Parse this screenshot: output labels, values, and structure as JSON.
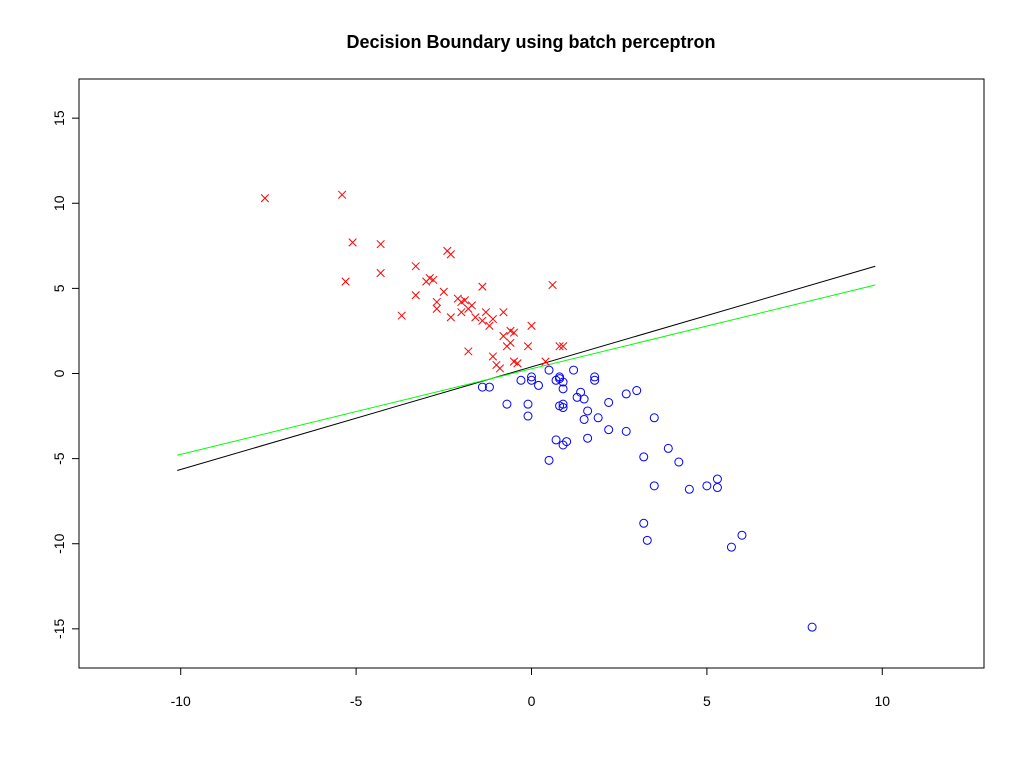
{
  "chart_data": {
    "type": "scatter",
    "title": "Decision Boundary using batch perceptron",
    "xlabel": "",
    "ylabel": "",
    "xlim": [
      -12.9,
      12.9
    ],
    "ylim": [
      -17.3,
      17.3
    ],
    "x_ticks": [
      -10,
      -5,
      0,
      5,
      10
    ],
    "x_tick_labels": [
      "-10",
      "-5",
      "0",
      "5",
      "10"
    ],
    "y_ticks": [
      -15,
      -10,
      -5,
      0,
      5,
      10,
      15
    ],
    "y_tick_labels": [
      "-15",
      "-10",
      "-5",
      "0",
      "5",
      "10",
      "15"
    ],
    "grid": false,
    "colors": {
      "class_x": "#ff0000",
      "class_o": "#0000ff",
      "line_black": "#000000",
      "line_green": "#00ff00"
    },
    "series": [
      {
        "marker": "x",
        "color": "#ff0000",
        "points": [
          [
            -7.6,
            10.3
          ],
          [
            -5.4,
            10.5
          ],
          [
            -5.1,
            7.7
          ],
          [
            -5.3,
            5.4
          ],
          [
            -4.3,
            7.6
          ],
          [
            -4.3,
            5.9
          ],
          [
            -3.7,
            3.4
          ],
          [
            -3.3,
            6.3
          ],
          [
            -3.3,
            4.6
          ],
          [
            -3.0,
            5.4
          ],
          [
            -2.9,
            5.6
          ],
          [
            -2.8,
            5.5
          ],
          [
            -2.7,
            4.2
          ],
          [
            -2.7,
            3.8
          ],
          [
            -2.5,
            4.8
          ],
          [
            -2.4,
            7.2
          ],
          [
            -2.3,
            7.0
          ],
          [
            -2.3,
            3.3
          ],
          [
            -2.1,
            4.4
          ],
          [
            -2.0,
            4.2
          ],
          [
            -2.0,
            3.6
          ],
          [
            -1.9,
            4.3
          ],
          [
            -1.8,
            3.8
          ],
          [
            -1.8,
            1.3
          ],
          [
            -1.7,
            4.0
          ],
          [
            -1.6,
            3.3
          ],
          [
            -1.4,
            3.1
          ],
          [
            -1.4,
            5.1
          ],
          [
            -1.3,
            3.6
          ],
          [
            -1.2,
            2.8
          ],
          [
            -1.1,
            3.2
          ],
          [
            -1.0,
            0.5
          ],
          [
            -1.1,
            1.0
          ],
          [
            -0.9,
            0.3
          ],
          [
            -0.8,
            3.6
          ],
          [
            -0.8,
            2.2
          ],
          [
            -0.7,
            1.6
          ],
          [
            -0.6,
            2.5
          ],
          [
            -0.5,
            0.7
          ],
          [
            -0.5,
            2.4
          ],
          [
            -0.6,
            1.8
          ],
          [
            -0.4,
            0.6
          ],
          [
            -0.1,
            1.6
          ],
          [
            0.0,
            2.8
          ],
          [
            0.4,
            0.7
          ],
          [
            0.6,
            5.2
          ],
          [
            0.8,
            1.6
          ],
          [
            0.9,
            1.6
          ]
        ]
      },
      {
        "marker": "o",
        "color": "#0000ff",
        "points": [
          [
            -1.4,
            -0.8
          ],
          [
            -1.2,
            -0.8
          ],
          [
            -0.7,
            -1.8
          ],
          [
            -0.3,
            -0.4
          ],
          [
            -0.1,
            -1.8
          ],
          [
            -0.1,
            -2.5
          ],
          [
            0.0,
            -0.2
          ],
          [
            0.0,
            -0.4
          ],
          [
            0.2,
            -0.7
          ],
          [
            0.5,
            0.2
          ],
          [
            0.5,
            -5.1
          ],
          [
            0.7,
            -3.9
          ],
          [
            0.7,
            -0.4
          ],
          [
            0.8,
            -0.3
          ],
          [
            0.8,
            -1.9
          ],
          [
            0.8,
            -0.2
          ],
          [
            0.9,
            -0.5
          ],
          [
            0.9,
            -0.9
          ],
          [
            0.9,
            -1.8
          ],
          [
            0.9,
            -2.0
          ],
          [
            0.9,
            -4.2
          ],
          [
            1.0,
            -4.0
          ],
          [
            1.2,
            0.2
          ],
          [
            1.3,
            -1.4
          ],
          [
            1.4,
            -1.1
          ],
          [
            1.5,
            -1.5
          ],
          [
            1.5,
            -2.7
          ],
          [
            1.6,
            -2.2
          ],
          [
            1.6,
            -3.8
          ],
          [
            1.8,
            -0.2
          ],
          [
            1.8,
            -0.4
          ],
          [
            1.9,
            -2.6
          ],
          [
            2.2,
            -3.3
          ],
          [
            2.2,
            -1.7
          ],
          [
            2.7,
            -1.2
          ],
          [
            2.7,
            -3.4
          ],
          [
            3.0,
            -1.0
          ],
          [
            3.2,
            -4.9
          ],
          [
            3.2,
            -8.8
          ],
          [
            3.3,
            -9.8
          ],
          [
            3.5,
            -6.6
          ],
          [
            3.5,
            -2.6
          ],
          [
            3.9,
            -4.4
          ],
          [
            4.2,
            -5.2
          ],
          [
            4.5,
            -6.8
          ],
          [
            5.0,
            -6.6
          ],
          [
            5.3,
            -6.2
          ],
          [
            5.3,
            -6.7
          ],
          [
            5.7,
            -10.2
          ],
          [
            6.0,
            -9.5
          ],
          [
            8.0,
            -14.9
          ]
        ]
      }
    ],
    "lines": [
      {
        "color": "#000000",
        "x": [
          -10.1,
          9.8
        ],
        "y": [
          -5.7,
          6.3
        ]
      },
      {
        "color": "#00ff00",
        "x": [
          -10.1,
          9.8
        ],
        "y": [
          -4.8,
          5.2
        ]
      }
    ]
  }
}
